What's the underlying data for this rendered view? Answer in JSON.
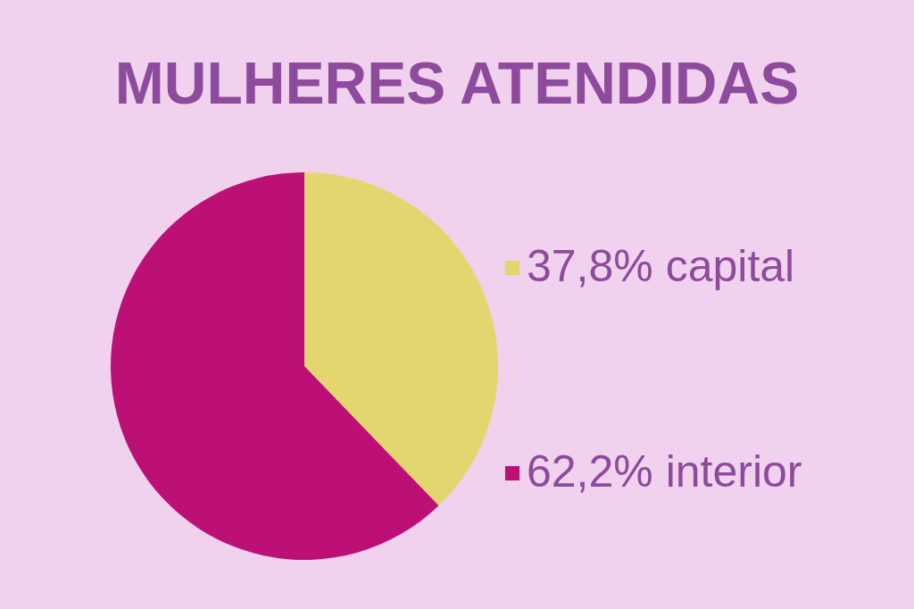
{
  "chart_data": {
    "type": "pie",
    "title": "MULHERES ATENDIDAS",
    "categories": [
      "capital",
      "interior"
    ],
    "values": [
      37.8,
      62.2
    ],
    "value_labels": [
      "37,8%",
      "62,2%"
    ],
    "colors": [
      "#e3d66f",
      "#bc1077"
    ],
    "legend": "right"
  }
}
